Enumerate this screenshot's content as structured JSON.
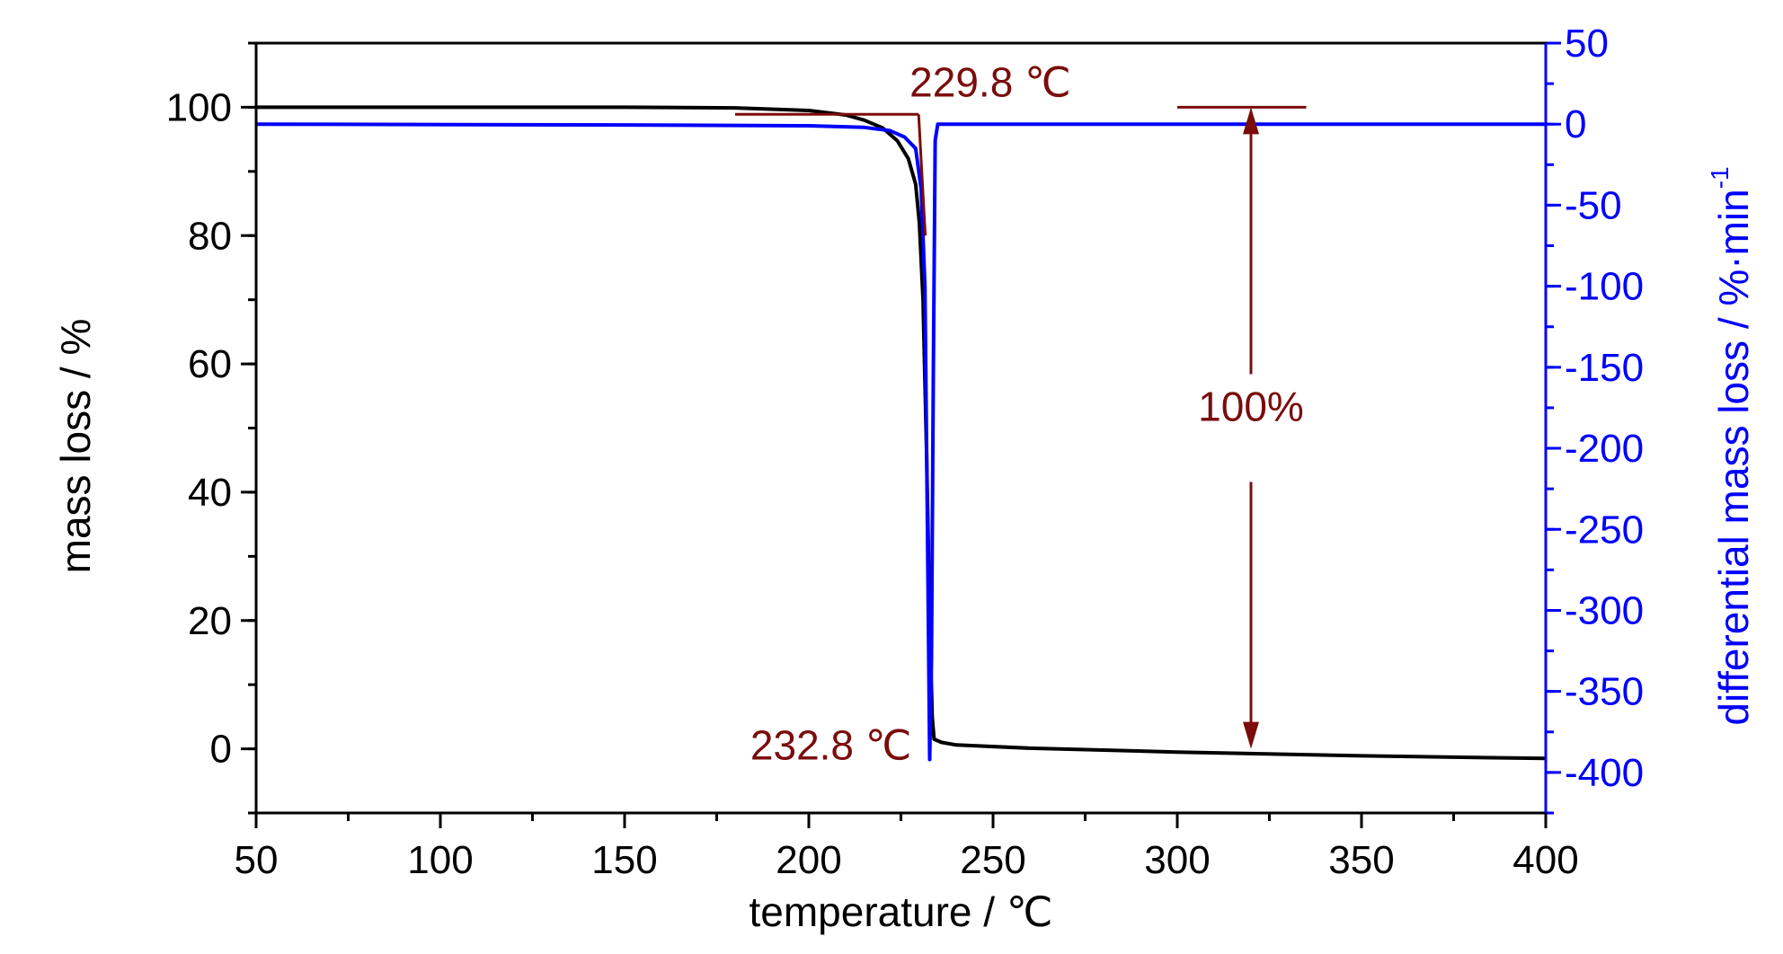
{
  "chart_data": {
    "type": "line",
    "x_axis": {
      "label": "temperature / ℃",
      "range": [
        50,
        400
      ],
      "ticks": [
        50,
        100,
        150,
        200,
        250,
        300,
        350,
        400
      ],
      "minor_step": 25
    },
    "y_axis_left": {
      "label": "mass loss / %",
      "range": [
        -10,
        110
      ],
      "ticks": [
        0,
        20,
        40,
        60,
        80,
        100
      ],
      "minor_step": 10,
      "color": "#000000"
    },
    "y_axis_right": {
      "label_main": "differential mass loss / %·min",
      "label_superscript": "-1",
      "range": [
        -425,
        50
      ],
      "ticks": [
        50,
        0,
        -50,
        -100,
        -150,
        -200,
        -250,
        -300,
        -350,
        -400
      ],
      "minor_step": 25,
      "color": "#0000ff"
    },
    "series": [
      {
        "axis": "left",
        "color": "#000000",
        "points": [
          [
            50,
            100
          ],
          [
            150,
            100
          ],
          [
            180,
            99.9
          ],
          [
            200,
            99.5
          ],
          [
            210,
            98.8
          ],
          [
            215,
            98.0
          ],
          [
            220,
            96.8
          ],
          [
            224,
            94.8
          ],
          [
            227,
            92.0
          ],
          [
            229,
            88.0
          ],
          [
            230,
            82.0
          ],
          [
            231,
            70.0
          ],
          [
            232,
            45.0
          ],
          [
            232.8,
            20.0
          ],
          [
            233.5,
            5.0
          ],
          [
            234,
            1.5
          ],
          [
            236,
            1.0
          ],
          [
            240,
            0.6
          ],
          [
            260,
            0.1
          ],
          [
            300,
            -0.5
          ],
          [
            350,
            -1.1
          ],
          [
            400,
            -1.5
          ]
        ]
      },
      {
        "axis": "right",
        "color": "#0000ff",
        "points": [
          [
            50,
            0
          ],
          [
            150,
            -0.5
          ],
          [
            200,
            -1.0
          ],
          [
            215,
            -2.0
          ],
          [
            222,
            -4.0
          ],
          [
            226,
            -8.0
          ],
          [
            229,
            -15.0
          ],
          [
            230.5,
            -40.0
          ],
          [
            231.5,
            -100.0
          ],
          [
            232.2,
            -250.0
          ],
          [
            232.8,
            -392.0
          ],
          [
            233.3,
            -330.0
          ],
          [
            233.8,
            -150.0
          ],
          [
            234.3,
            -10.0
          ],
          [
            235,
            0
          ],
          [
            260,
            0
          ],
          [
            300,
            0
          ],
          [
            400,
            0
          ]
        ]
      }
    ],
    "annotation_color": "#7b0c0c",
    "annotations": [
      {
        "text": "229.8 ℃",
        "x": 229.8
      },
      {
        "text": "232.8 ℃",
        "x": 232.8
      },
      {
        "text": "100%"
      }
    ],
    "onset_tangent": {
      "baseline": [
        [
          180,
          98.9
        ],
        [
          229.8,
          98.9
        ]
      ],
      "slope": [
        [
          229.8,
          98.9
        ],
        [
          231.6,
          80
        ]
      ]
    },
    "mass_arrow": {
      "x": 320,
      "from": 100,
      "to": 0,
      "bar_x": [
        300,
        335
      ]
    },
    "grid": false
  }
}
